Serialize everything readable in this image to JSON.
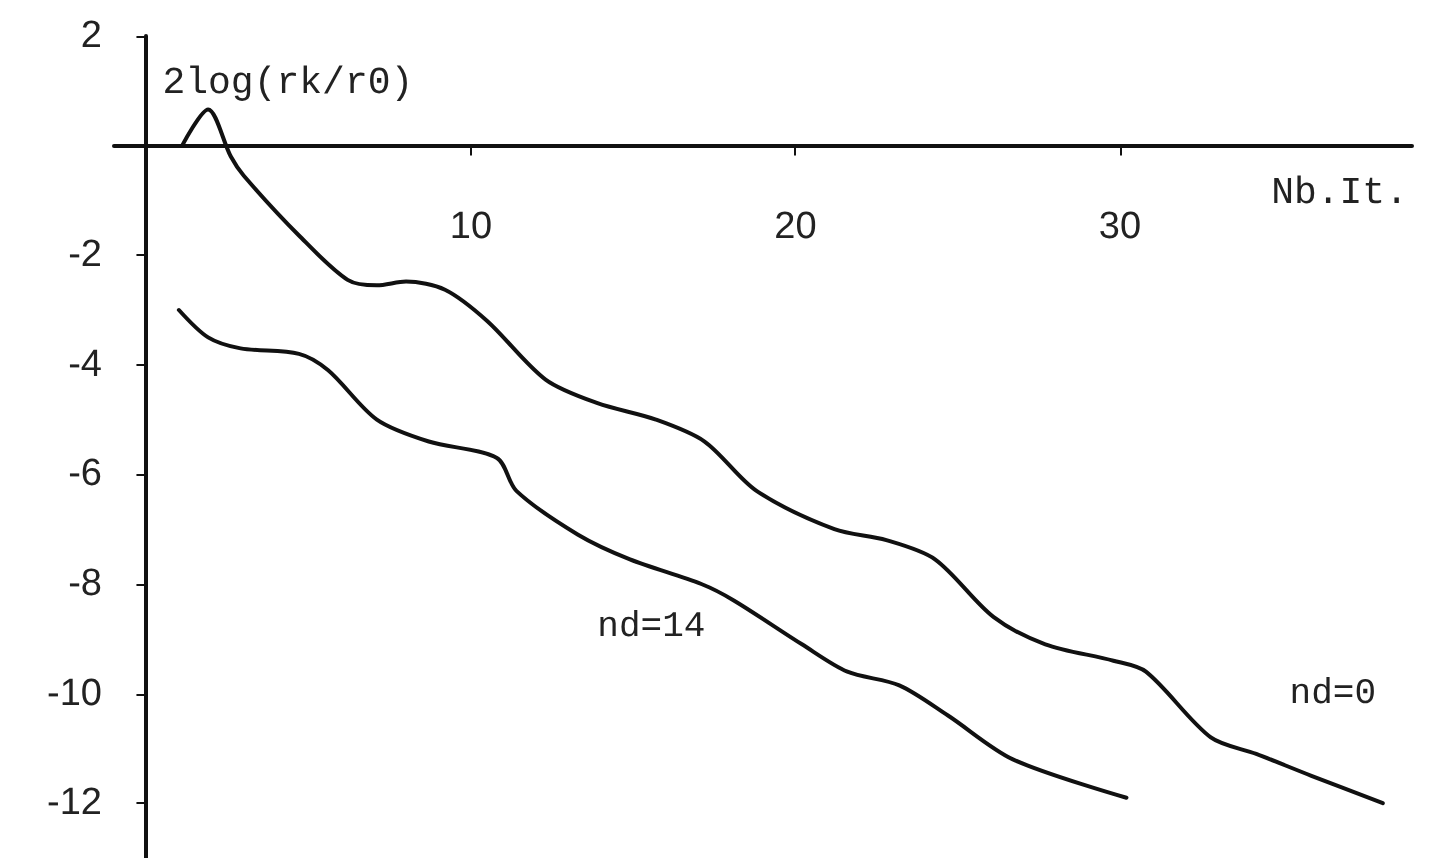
{
  "chart_data": {
    "type": "line",
    "xlabel": "Nb.It.",
    "ylabel": "2log(rk/r0)",
    "xlim": [
      -1,
      39
    ],
    "ylim": [
      -13,
      2
    ],
    "xticks": [
      10,
      20,
      30
    ],
    "yticks": [
      -12,
      -10,
      -8,
      -6,
      -4,
      -2,
      2
    ],
    "grid": false,
    "legend": false,
    "marker": "none",
    "line_style": "solid",
    "series": [
      {
        "name": "nd=0",
        "color": "#111111",
        "x": [
          1.1,
          1.9,
          2.6,
          3,
          4.7,
          6.2,
          7.1,
          8,
          9.2,
          10.5,
          12.3,
          13.9,
          15.7,
          17.2,
          18.8,
          21.2,
          22.8,
          24.3,
          26.1,
          27.7,
          29.8,
          30.8,
          32.8,
          34.2,
          35.9,
          38.1
        ],
        "values": [
          0,
          0.66,
          -0.2,
          -0.55,
          -1.64,
          -2.45,
          -2.55,
          -2.48,
          -2.63,
          -3.2,
          -4.27,
          -4.7,
          -5,
          -5.4,
          -6.3,
          -7,
          -7.2,
          -7.55,
          -8.6,
          -9.1,
          -9.4,
          -9.6,
          -10.8,
          -11.1,
          -11.5,
          -12
        ]
      },
      {
        "name": "nd=14",
        "color": "#111111",
        "x": [
          1,
          1.9,
          2.9,
          4.7,
          5.6,
          7.1,
          8.7,
          10.8,
          11.4,
          13.3,
          14.9,
          17.1,
          18.1,
          20.2,
          21.6,
          23.2,
          24.7,
          26.7,
          30.2
        ],
        "values": [
          -3,
          -3.5,
          -3.7,
          -3.8,
          -4.1,
          -5,
          -5.4,
          -5.7,
          -6.3,
          -7.1,
          -7.55,
          -8,
          -8.3,
          -9.1,
          -9.6,
          -9.85,
          -10.4,
          -11.2,
          -11.9
        ]
      }
    ]
  }
}
